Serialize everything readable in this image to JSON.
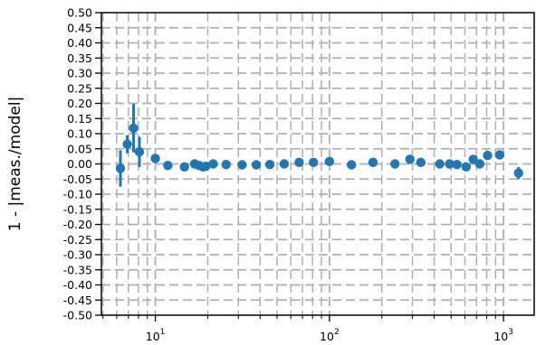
{
  "colors": {
    "series": "#1f77b4",
    "grid": "#b0b0b0",
    "axis": "#000000"
  },
  "chart_data": {
    "type": "scatter",
    "title": "",
    "xlabel": "",
    "ylabel": "1 - |meas./model|",
    "xscale": "log",
    "xlim": [
      4.9,
      1500
    ],
    "ylim": [
      -0.5,
      0.5
    ],
    "grid": true,
    "grid_style": "dashed",
    "legend": "none",
    "x_ticks": [
      {
        "value": 10,
        "base": "10",
        "exp": "1"
      },
      {
        "value": 100,
        "base": "10",
        "exp": "2"
      },
      {
        "value": 1000,
        "base": "10",
        "exp": "3"
      }
    ],
    "y_ticks": [
      "0.50",
      "0.45",
      "0.40",
      "0.35",
      "0.30",
      "0.25",
      "0.20",
      "0.15",
      "0.10",
      "0.05",
      "0.00",
      "-0.05",
      "-0.10",
      "-0.15",
      "-0.20",
      "-0.25",
      "-0.30",
      "-0.35",
      "-0.40",
      "-0.45",
      "-0.50"
    ],
    "series": [
      {
        "points": [
          {
            "x": 6.3,
            "y": -0.015,
            "err": 0.06
          },
          {
            "x": 6.9,
            "y": 0.065,
            "err": 0.03
          },
          {
            "x": 7.5,
            "y": 0.118,
            "err": 0.08
          },
          {
            "x": 8.1,
            "y": 0.04,
            "err": 0.05
          },
          {
            "x": 10.0,
            "y": 0.018,
            "err": 0.012
          },
          {
            "x": 11.8,
            "y": -0.005,
            "err": 0.0
          },
          {
            "x": 14.7,
            "y": -0.01,
            "err": 0.0
          },
          {
            "x": 16.8,
            "y": 0.0,
            "err": 0.0
          },
          {
            "x": 17.8,
            "y": -0.005,
            "err": 0.0
          },
          {
            "x": 18.8,
            "y": -0.01,
            "err": 0.0
          },
          {
            "x": 19.5,
            "y": -0.008,
            "err": 0.0
          },
          {
            "x": 21.5,
            "y": 0.0,
            "err": 0.0
          },
          {
            "x": 25.5,
            "y": -0.002,
            "err": 0.0
          },
          {
            "x": 31.5,
            "y": -0.003,
            "err": 0.0
          },
          {
            "x": 38.0,
            "y": -0.003,
            "err": 0.0
          },
          {
            "x": 45.5,
            "y": -0.002,
            "err": 0.0
          },
          {
            "x": 55.0,
            "y": 0.0,
            "err": 0.0
          },
          {
            "x": 67.0,
            "y": 0.005,
            "err": 0.0
          },
          {
            "x": 81.0,
            "y": 0.005,
            "err": 0.0
          },
          {
            "x": 100.0,
            "y": 0.008,
            "err": 0.0
          },
          {
            "x": 134.0,
            "y": -0.003,
            "err": 0.0
          },
          {
            "x": 178.0,
            "y": 0.005,
            "err": 0.0
          },
          {
            "x": 238.0,
            "y": 0.0,
            "err": 0.0
          },
          {
            "x": 290.0,
            "y": 0.015,
            "err": 0.0
          },
          {
            "x": 335.0,
            "y": 0.005,
            "err": 0.0
          },
          {
            "x": 430.0,
            "y": 0.0,
            "err": 0.0
          },
          {
            "x": 490.0,
            "y": 0.0,
            "err": 0.0
          },
          {
            "x": 540.0,
            "y": -0.002,
            "err": 0.0
          },
          {
            "x": 610.0,
            "y": -0.01,
            "err": 0.0
          },
          {
            "x": 670.0,
            "y": 0.015,
            "err": 0.0
          },
          {
            "x": 730.0,
            "y": 0.0,
            "err": 0.0
          },
          {
            "x": 810.0,
            "y": 0.028,
            "err": 0.0
          },
          {
            "x": 950.0,
            "y": 0.03,
            "err": 0.0
          },
          {
            "x": 1220.0,
            "y": -0.03,
            "err": 0.02
          }
        ]
      }
    ]
  }
}
